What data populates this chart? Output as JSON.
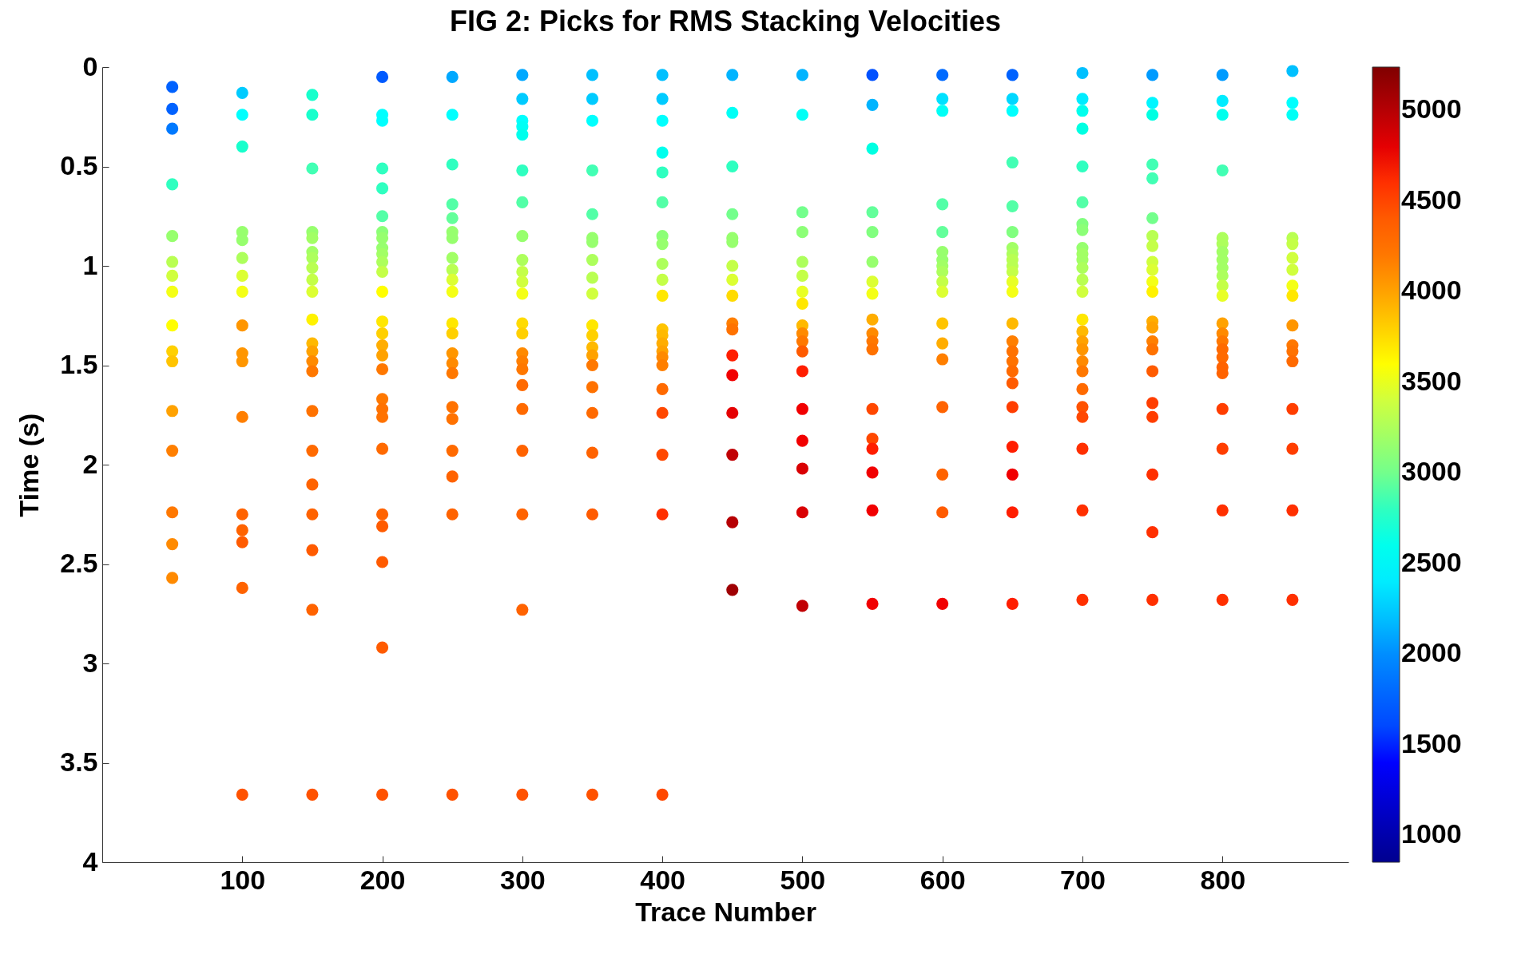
{
  "chart_data": {
    "type": "scatter",
    "title": "FIG 2: Picks for RMS Stacking Velocities",
    "xlabel": "Trace Number",
    "ylabel": "Time (s)",
    "xlim": [
      0,
      890
    ],
    "xticks": [
      100,
      200,
      300,
      400,
      500,
      600,
      700,
      800
    ],
    "ylim": [
      4,
      0
    ],
    "yticks": [
      0,
      0.5,
      1,
      1.5,
      2,
      2.5,
      3,
      3.5,
      4
    ],
    "clim": [
      850,
      5240
    ],
    "cticks": [
      1000,
      1500,
      2000,
      2500,
      3000,
      3500,
      4000,
      4500,
      5000
    ],
    "grid": false,
    "marker": "circle",
    "x": [
      50,
      50,
      50,
      50,
      50,
      50,
      50,
      50,
      50,
      50,
      50,
      50,
      50,
      50,
      50,
      50,
      100,
      100,
      100,
      100,
      100,
      100,
      100,
      100,
      100,
      100,
      100,
      100,
      100,
      100,
      100,
      100,
      100,
      150,
      150,
      150,
      150,
      150,
      150,
      150,
      150,
      150,
      150,
      150,
      150,
      150,
      150,
      150,
      150,
      150,
      150,
      150,
      150,
      150,
      150,
      200,
      200,
      200,
      200,
      200,
      200,
      200,
      200,
      200,
      200,
      200,
      200,
      200,
      200,
      200,
      200,
      200,
      200,
      200,
      200,
      200,
      200,
      200,
      200,
      200,
      200,
      200,
      250,
      250,
      250,
      250,
      250,
      250,
      250,
      250,
      250,
      250,
      250,
      250,
      250,
      250,
      250,
      250,
      250,
      250,
      250,
      250,
      250,
      250,
      300,
      300,
      300,
      300,
      300,
      300,
      300,
      300,
      300,
      300,
      300,
      300,
      300,
      300,
      300,
      300,
      300,
      300,
      300,
      300,
      300,
      300,
      300,
      350,
      350,
      350,
      350,
      350,
      350,
      350,
      350,
      350,
      350,
      350,
      350,
      350,
      350,
      350,
      350,
      350,
      350,
      350,
      350,
      400,
      400,
      400,
      400,
      400,
      400,
      400,
      400,
      400,
      400,
      400,
      400,
      400,
      400,
      400,
      400,
      400,
      400,
      400,
      400,
      400,
      400,
      450,
      450,
      450,
      450,
      450,
      450,
      450,
      450,
      450,
      450,
      450,
      450,
      450,
      450,
      450,
      450,
      450,
      500,
      500,
      500,
      500,
      500,
      500,
      500,
      500,
      500,
      500,
      500,
      500,
      500,
      500,
      500,
      500,
      500,
      500,
      550,
      550,
      550,
      550,
      550,
      550,
      550,
      550,
      550,
      550,
      550,
      550,
      550,
      550,
      550,
      550,
      550,
      550,
      600,
      600,
      600,
      600,
      600,
      600,
      600,
      600,
      600,
      600,
      600,
      600,
      600,
      600,
      600,
      600,
      600,
      600,
      650,
      650,
      650,
      650,
      650,
      650,
      650,
      650,
      650,
      650,
      650,
      650,
      650,
      650,
      650,
      650,
      650,
      650,
      650,
      650,
      650,
      650,
      650,
      650,
      700,
      700,
      700,
      700,
      700,
      700,
      700,
      700,
      700,
      700,
      700,
      700,
      700,
      700,
      700,
      700,
      700,
      700,
      700,
      700,
      700,
      700,
      700,
      700,
      700,
      700,
      750,
      750,
      750,
      750,
      750,
      750,
      750,
      750,
      750,
      750,
      750,
      750,
      750,
      750,
      750,
      750,
      750,
      750,
      750,
      750,
      750,
      750,
      800,
      800,
      800,
      800,
      800,
      800,
      800,
      800,
      800,
      800,
      800,
      800,
      800,
      800,
      800,
      800,
      800,
      800,
      800,
      800,
      800,
      800,
      800,
      850,
      850,
      850,
      850,
      850,
      850,
      850,
      850,
      850,
      850,
      850,
      850,
      850,
      850,
      850,
      850,
      850
    ],
    "values": [
      0.1,
      0.21,
      0.31,
      0.59,
      0.85,
      0.98,
      1.05,
      1.13,
      1.3,
      1.43,
      1.48,
      1.73,
      1.93,
      2.24,
      2.4,
      2.57,
      0.13,
      0.24,
      0.4,
      0.83,
      0.87,
      0.96,
      1.05,
      1.13,
      1.3,
      1.44,
      1.48,
      1.76,
      2.25,
      2.33,
      2.39,
      2.62,
      3.66,
      0.14,
      0.24,
      0.51,
      0.83,
      0.86,
      0.93,
      0.96,
      1.01,
      1.07,
      1.13,
      1.27,
      1.39,
      1.43,
      1.48,
      1.53,
      1.73,
      1.93,
      2.1,
      2.25,
      2.43,
      2.73,
      3.66,
      0.05,
      0.24,
      0.27,
      0.51,
      0.61,
      0.75,
      0.83,
      0.86,
      0.91,
      0.94,
      0.98,
      1.03,
      1.13,
      1.28,
      1.34,
      1.4,
      1.45,
      1.52,
      1.67,
      1.72,
      1.76,
      1.92,
      2.25,
      2.31,
      2.49,
      2.92,
      3.66,
      0.05,
      0.24,
      0.49,
      0.69,
      0.76,
      0.83,
      0.86,
      0.96,
      1.02,
      1.07,
      1.13,
      1.29,
      1.34,
      1.44,
      1.49,
      1.54,
      1.71,
      1.77,
      1.93,
      2.06,
      2.25,
      3.66,
      0.04,
      0.16,
      0.27,
      0.3,
      0.34,
      0.52,
      0.68,
      0.85,
      0.97,
      1.03,
      1.08,
      1.14,
      1.29,
      1.34,
      1.44,
      1.48,
      1.52,
      1.6,
      1.72,
      1.93,
      2.25,
      2.73,
      3.66,
      0.04,
      0.16,
      0.27,
      0.52,
      0.74,
      0.86,
      0.88,
      0.97,
      1.06,
      1.14,
      1.3,
      1.35,
      1.41,
      1.45,
      1.5,
      1.61,
      1.74,
      1.94,
      2.25,
      3.66,
      0.04,
      0.16,
      0.27,
      0.43,
      0.53,
      0.68,
      0.85,
      0.89,
      0.99,
      1.07,
      1.15,
      1.32,
      1.35,
      1.39,
      1.43,
      1.46,
      1.5,
      1.62,
      1.74,
      1.95,
      2.25,
      3.66,
      0.04,
      0.23,
      0.5,
      0.74,
      0.86,
      0.88,
      1,
      1.07,
      1.15,
      1.29,
      1.32,
      1.45,
      1.55,
      1.74,
      1.95,
      2.29,
      2.63,
      0.04,
      0.24,
      0.73,
      0.83,
      0.98,
      1.05,
      1.13,
      1.19,
      1.3,
      1.34,
      1.38,
      1.43,
      1.53,
      1.72,
      1.88,
      2.02,
      2.24,
      2.71,
      0.04,
      0.19,
      0.41,
      0.73,
      0.83,
      0.98,
      1.08,
      1.14,
      1.27,
      1.34,
      1.38,
      1.42,
      1.72,
      1.87,
      1.92,
      2.04,
      2.23,
      2.7,
      0.04,
      0.16,
      0.22,
      0.69,
      0.83,
      0.93,
      0.97,
      1,
      1.03,
      1.08,
      1.13,
      1.29,
      1.39,
      1.47,
      1.71,
      2.05,
      2.24,
      2.7,
      0.04,
      0.16,
      0.22,
      0.48,
      0.7,
      0.83,
      0.91,
      0.94,
      0.97,
      1,
      1.03,
      1.08,
      1.13,
      1.29,
      1.38,
      1.43,
      1.48,
      1.53,
      1.59,
      1.71,
      1.91,
      2.05,
      2.24,
      2.7,
      0.03,
      0.16,
      0.22,
      0.31,
      0.5,
      0.68,
      0.79,
      0.82,
      0.91,
      0.94,
      0.97,
      1.01,
      1.07,
      1.13,
      1.27,
      1.33,
      1.38,
      1.42,
      1.48,
      1.53,
      1.62,
      1.71,
      1.76,
      1.92,
      2.23,
      2.68,
      0.04,
      0.18,
      0.24,
      0.49,
      0.56,
      0.76,
      0.85,
      0.9,
      0.98,
      1.02,
      1.08,
      1.13,
      1.28,
      1.31,
      1.38,
      1.42,
      1.53,
      1.69,
      1.76,
      2.05,
      2.34,
      2.68,
      0.04,
      0.17,
      0.24,
      0.52,
      0.86,
      0.89,
      0.93,
      0.97,
      1.01,
      1.05,
      1.1,
      1.15,
      1.29,
      1.34,
      1.38,
      1.42,
      1.46,
      1.51,
      1.54,
      1.72,
      1.92,
      2.23,
      2.68,
      0.02,
      0.18,
      0.24,
      0.86,
      0.89,
      0.96,
      1.02,
      1.1,
      1.15,
      1.3,
      1.4,
      1.43,
      1.48,
      1.72,
      1.92,
      2.23,
      2.68
    ],
    "cvalues": [
      1750,
      1750,
      1900,
      2800,
      3150,
      3300,
      3400,
      3550,
      3600,
      3800,
      3850,
      4000,
      4150,
      4200,
      4100,
      4100,
      2250,
      2500,
      2750,
      3150,
      3150,
      3250,
      3450,
      3550,
      4050,
      4050,
      4050,
      4150,
      4350,
      4350,
      4400,
      4350,
      4450,
      2750,
      2750,
      2850,
      3150,
      3200,
      3200,
      3250,
      3300,
      3350,
      3450,
      3650,
      3900,
      4000,
      4100,
      4200,
      4250,
      4300,
      4350,
      4350,
      4400,
      4350,
      4450,
      1700,
      2500,
      2500,
      2800,
      2800,
      2900,
      3100,
      3150,
      3150,
      3200,
      3250,
      3350,
      3600,
      3700,
      3800,
      3950,
      4000,
      4200,
      4200,
      4250,
      4250,
      4300,
      4350,
      4400,
      4400,
      4400,
      4450,
      2100,
      2500,
      2800,
      2900,
      2950,
      3150,
      3150,
      3200,
      3300,
      3450,
      3550,
      3700,
      3800,
      4050,
      4100,
      4200,
      4250,
      4250,
      4300,
      4350,
      4350,
      4450,
      2100,
      2250,
      2500,
      2550,
      2600,
      2800,
      2900,
      3150,
      3250,
      3350,
      3400,
      3550,
      3750,
      3800,
      4100,
      4150,
      4200,
      4300,
      4300,
      4350,
      4350,
      4350,
      4450,
      2200,
      2250,
      2500,
      2850,
      2900,
      3150,
      3150,
      3250,
      3300,
      3400,
      3700,
      3800,
      3900,
      4000,
      4200,
      4250,
      4300,
      4350,
      4400,
      4450,
      2200,
      2250,
      2500,
      2600,
      2800,
      2900,
      3100,
      3150,
      3250,
      3350,
      3700,
      3850,
      3900,
      3950,
      4000,
      4100,
      4150,
      4300,
      4500,
      4500,
      4600,
      4500,
      2150,
      2550,
      2800,
      3000,
      3150,
      3150,
      3350,
      3450,
      3750,
      4150,
      4250,
      4650,
      4750,
      4800,
      4950,
      5000,
      5100,
      2150,
      2550,
      3000,
      3100,
      3250,
      3350,
      3500,
      3700,
      3900,
      4100,
      4200,
      4400,
      4650,
      4750,
      4750,
      4850,
      4850,
      4950,
      1650,
      2150,
      2650,
      2950,
      3050,
      3150,
      3450,
      3550,
      3950,
      4100,
      4200,
      4250,
      4500,
      4500,
      4650,
      4750,
      4750,
      4750,
      1800,
      2350,
      2550,
      2900,
      2950,
      3150,
      3150,
      3200,
      3250,
      3350,
      3450,
      3850,
      3950,
      4150,
      4350,
      4350,
      4400,
      4750,
      1750,
      2300,
      2500,
      2850,
      2900,
      3050,
      3200,
      3250,
      3300,
      3300,
      3350,
      3500,
      3550,
      3900,
      4150,
      4250,
      4250,
      4300,
      4400,
      4550,
      4650,
      4750,
      4650,
      4650,
      2200,
      2400,
      2600,
      2650,
      2800,
      2900,
      3050,
      3100,
      3150,
      3200,
      3200,
      3250,
      3300,
      3400,
      3700,
      3900,
      4000,
      4050,
      4100,
      4200,
      4300,
      4450,
      4500,
      4600,
      4600,
      4600,
      2050,
      2450,
      2650,
      2850,
      2850,
      3000,
      3300,
      3350,
      3400,
      3450,
      3550,
      3650,
      3950,
      4000,
      4150,
      4250,
      4400,
      4550,
      4550,
      4600,
      4600,
      4600,
      2050,
      2400,
      2600,
      2850,
      3250,
      3250,
      3200,
      3200,
      3200,
      3250,
      3350,
      3500,
      4000,
      4100,
      4200,
      4300,
      4300,
      4350,
      4350,
      4550,
      4550,
      4600,
      4600,
      2200,
      2500,
      2550,
      3300,
      3350,
      3400,
      3400,
      3550,
      3700,
      4050,
      4200,
      4250,
      4300,
      4550,
      4550,
      4600,
      4600
    ]
  }
}
